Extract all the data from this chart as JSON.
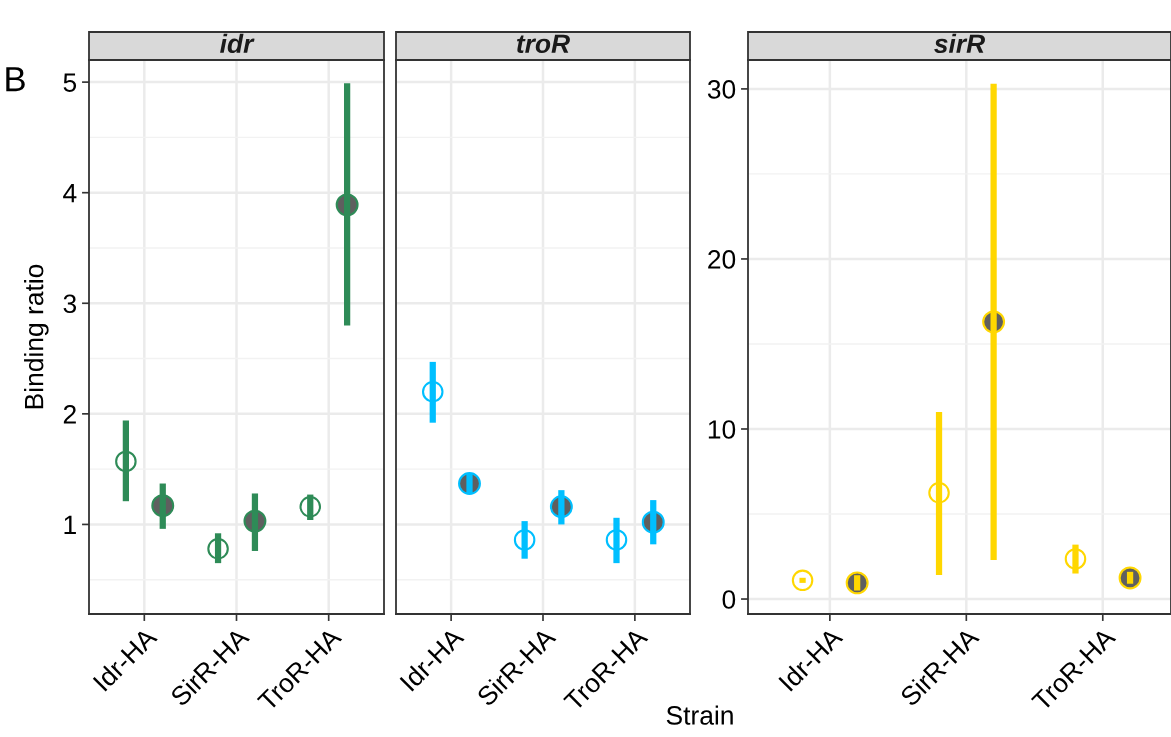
{
  "chart_data": [
    {
      "type": "scatter",
      "title": "idr",
      "ylabel": "Binding ratio",
      "annotations": [
        "B"
      ],
      "categories": [
        "Idr-HA",
        "SirR-HA",
        "TroR-HA"
      ],
      "ylim": [
        0.19,
        5.2
      ],
      "yticks": [
        1,
        2,
        3,
        4,
        5
      ],
      "grid": true,
      "marker": "circle",
      "series": [
        {
          "color": "#2e8b57",
          "values": [
            1.57,
            0.78,
            1.16
          ],
          "errors": [
            [
              1.21,
              1.94
            ],
            [
              0.65,
              0.92
            ],
            [
              1.04,
              1.27
            ]
          ]
        },
        {
          "color": "#2e8b57",
          "values": [
            1.17,
            1.03,
            3.89
          ],
          "errors": [
            [
              0.96,
              1.37
            ],
            [
              0.76,
              1.28
            ],
            [
              2.8,
              4.99
            ]
          ]
        }
      ]
    },
    {
      "type": "scatter",
      "title": "troR",
      "xlabel": "Strain",
      "categories": [
        "Idr-HA",
        "SirR-HA",
        "TroR-HA"
      ],
      "ylim": [
        0.19,
        5.2
      ],
      "yticks": [
        1,
        2,
        3,
        4,
        5
      ],
      "tick_labels": "x",
      "grid": true,
      "marker": "circle",
      "series": [
        {
          "color": "#00bfff",
          "values": [
            2.2,
            0.86,
            0.86
          ],
          "errors": [
            [
              1.92,
              2.47
            ],
            [
              0.69,
              1.03
            ],
            [
              0.65,
              1.06
            ]
          ]
        },
        {
          "color": "#00bfff",
          "values": [
            1.37,
            1.16,
            1.02
          ],
          "errors": [
            [
              1.28,
              1.46
            ],
            [
              1.0,
              1.31
            ],
            [
              0.82,
              1.22
            ]
          ]
        }
      ]
    },
    {
      "type": "scatter",
      "title": "sirR",
      "categories": [
        "Idr-HA",
        "SirR-HA",
        "TroR-HA"
      ],
      "ylim": [
        -0.88,
        31.7
      ],
      "yticks": [
        0,
        10,
        20,
        30
      ],
      "grid": true,
      "marker": "circle",
      "series": [
        {
          "color": "#ffd700",
          "values": [
            1.1,
            6.25,
            2.36
          ],
          "errors": [
            [
              0.95,
              1.25
            ],
            [
              1.42,
              11.0
            ],
            [
              1.5,
              3.2
            ]
          ]
        },
        {
          "color": "#ffd700",
          "values": [
            0.95,
            16.3,
            1.24
          ],
          "errors": [
            [
              0.5,
              1.4
            ],
            [
              2.3,
              30.3
            ],
            [
              0.9,
              1.6
            ]
          ]
        }
      ]
    }
  ]
}
